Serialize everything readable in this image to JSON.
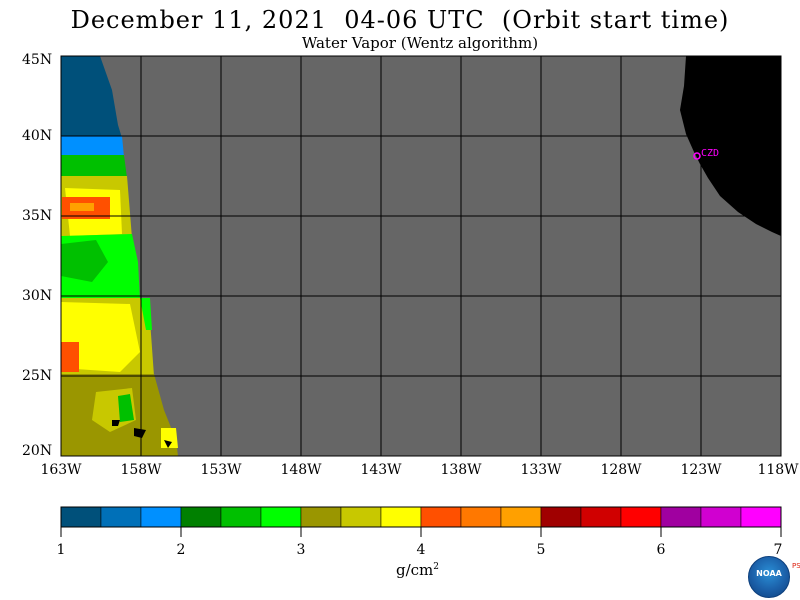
{
  "header": {
    "title": "December 11, 2021  04-06 UTC  (Orbit start time)",
    "subtitle": "Water Vapor (Wentz algorithm)"
  },
  "map": {
    "lat_labels": [
      "45N",
      "40N",
      "35N",
      "30N",
      "25N",
      "20N"
    ],
    "lon_labels": [
      "163W",
      "158W",
      "153W",
      "148W",
      "143W",
      "138W",
      "133W",
      "128W",
      "123W",
      "118W"
    ],
    "lat_range": [
      20,
      45
    ],
    "lon_range": [
      -163,
      -118
    ],
    "grid": true,
    "station_label": "CZD",
    "colors": {
      "nodata": "#666666",
      "land": "#000000",
      "grid": "#000000",
      "station": "#ff00ff"
    }
  },
  "colorbar": {
    "tick_labels": [
      "1",
      "2",
      "3",
      "4",
      "5",
      "6",
      "7"
    ],
    "range": [
      1,
      7
    ],
    "units_base": "g/cm",
    "units_exp": "2",
    "colors": [
      "#00507a",
      "#0070b8",
      "#0090ff",
      "#008000",
      "#00c000",
      "#00ff00",
      "#9a9600",
      "#c8c800",
      "#ffff00",
      "#ff5000",
      "#ff7800",
      "#ffa000",
      "#a00000",
      "#d00000",
      "#ff0000",
      "#a000a0",
      "#d000d0",
      "#ff00ff"
    ]
  },
  "logo": {
    "name": "NOAA",
    "side_text": "PSL"
  }
}
